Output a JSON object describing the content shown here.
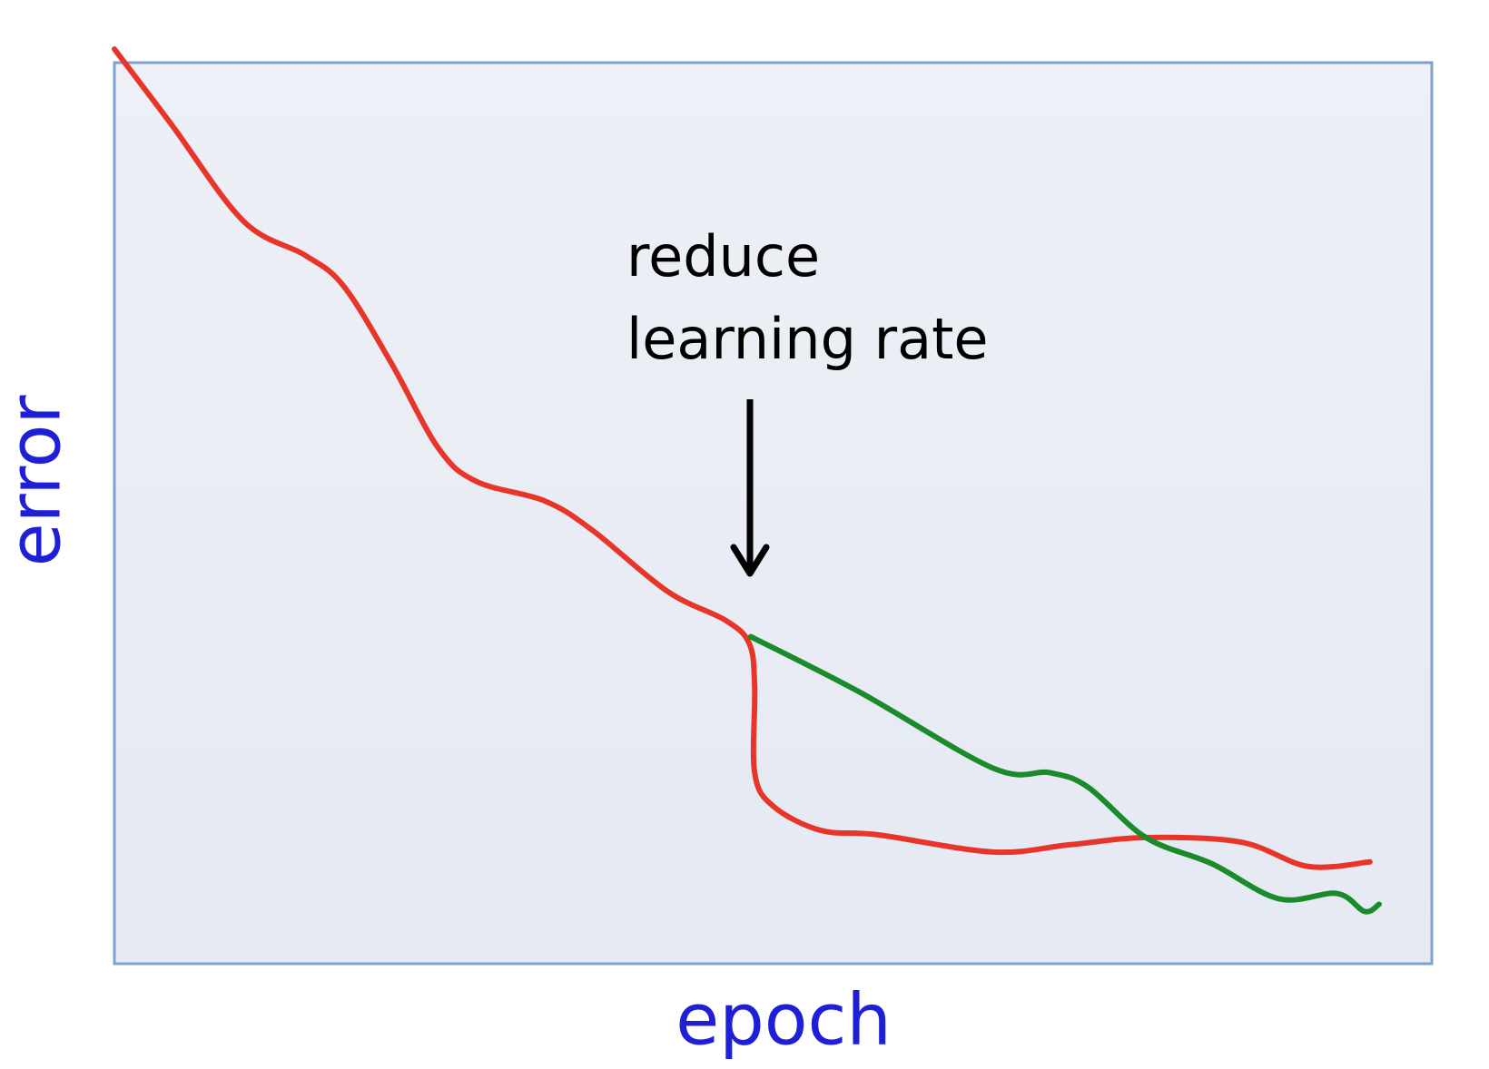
{
  "chart_data": {
    "type": "line",
    "xlabel": "epoch",
    "ylabel": "error",
    "annotations": [
      "reduce",
      "learning rate"
    ],
    "xlim": [
      0,
      100
    ],
    "ylim": [
      0,
      100
    ],
    "series": [
      {
        "color": "#e8352a",
        "x": [
          0,
          4.3,
          9.8,
          14.5,
          17.4,
          21,
          24.6,
          27.5,
          32.6,
          36.2,
          42,
          46.4,
          48.2,
          48.6,
          48.6,
          50,
          53.6,
          58,
          66.7,
          72.5,
          78.3,
          85.5,
          90.6,
          95.3
        ],
        "values": [
          101.5,
          93.2,
          82.4,
          78.6,
          75.2,
          66.7,
          57.2,
          53.5,
          51.4,
          48.2,
          41.3,
          38.1,
          35.5,
          30.7,
          21.2,
          17.5,
          14.8,
          14.3,
          12.4,
          13.2,
          14,
          13.5,
          10.8,
          11.3
        ]
      },
      {
        "color": "#1a8a2a",
        "x": [
          48.3,
          56.5,
          66.7,
          71,
          73.9,
          78.3,
          83.3,
          88.4,
          92.8,
          94.9,
          96
        ],
        "values": [
          36.3,
          30.2,
          21.7,
          21.2,
          19.6,
          14,
          11.1,
          7.2,
          7.8,
          5.8,
          6.6
        ]
      }
    ]
  }
}
